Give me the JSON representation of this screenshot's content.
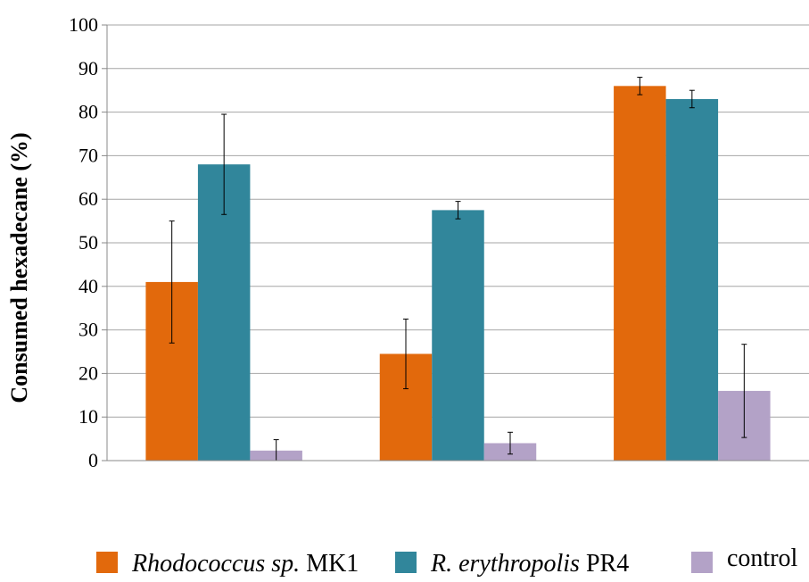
{
  "chart_data": {
    "type": "bar",
    "ylabel": "Consumed hexadecane (%)",
    "xlabel": "",
    "ylim": [
      0,
      100
    ],
    "yticks": [
      0,
      10,
      20,
      30,
      40,
      50,
      60,
      70,
      80,
      90,
      100
    ],
    "grid": true,
    "legend_position": "bottom",
    "categories": [
      "",
      "",
      ""
    ],
    "series": [
      {
        "name": "Rhodococcus sp. MK1",
        "name_italic": "Rhodococcus sp.",
        "name_plain": " MK1",
        "color": "#E2690C",
        "values": [
          41,
          24.5,
          86
        ],
        "error": [
          14,
          8,
          2
        ]
      },
      {
        "name": "R. erythropolis PR4",
        "name_italic": "R. erythropolis",
        "name_plain": " PR4",
        "color": "#31869B",
        "values": [
          68,
          57.5,
          83
        ],
        "error": [
          11.5,
          2,
          2
        ]
      },
      {
        "name": "control",
        "name_italic": "",
        "name_plain": "control",
        "color": "#B3A2C7",
        "values": [
          2.3,
          4,
          16
        ],
        "error": [
          2.5,
          2.5,
          10.7
        ]
      }
    ]
  }
}
